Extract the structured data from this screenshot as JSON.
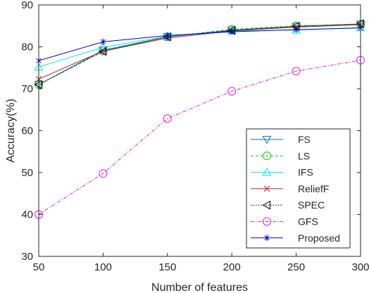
{
  "chart_data": {
    "type": "line",
    "xlabel": "Number of features",
    "ylabel": "Accuracy(%)",
    "xlim": [
      50,
      300
    ],
    "ylim": [
      30,
      90
    ],
    "x_ticks": [
      "50",
      "100",
      "150",
      "200",
      "250",
      "300"
    ],
    "y_ticks": [
      "30",
      "40",
      "50",
      "60",
      "70",
      "80",
      "90"
    ],
    "grid": false,
    "legend_position": "bottom-right",
    "x": [
      50,
      100,
      150,
      200,
      250,
      300
    ],
    "series": [
      {
        "name": "FS",
        "values": [
          71.0,
          79.2,
          82.4,
          84.0,
          84.9,
          85.4
        ],
        "color": "#0072BD",
        "dash": "solid",
        "marker": "triangle-down"
      },
      {
        "name": "LS",
        "values": [
          71.0,
          79.0,
          82.4,
          84.2,
          85.0,
          85.4
        ],
        "color": "#00CC00",
        "dash": "dashed",
        "marker": "circle"
      },
      {
        "name": "IFS",
        "values": [
          75.2,
          79.9,
          82.5,
          83.8,
          84.0,
          84.6
        ],
        "color": "#00E5E5",
        "dash": "solid",
        "marker": "triangle-up"
      },
      {
        "name": "ReliefF",
        "values": [
          72.3,
          79.0,
          82.1,
          83.8,
          84.7,
          85.3
        ],
        "color": "#B22222",
        "dash": "solid",
        "marker": "x"
      },
      {
        "name": "SPEC",
        "values": [
          71.0,
          78.9,
          82.4,
          83.9,
          84.9,
          85.5
        ],
        "color": "#000000",
        "dash": "dotted",
        "marker": "triangle-left"
      },
      {
        "name": "GFS",
        "values": [
          40.0,
          49.8,
          62.9,
          69.4,
          74.2,
          76.8
        ],
        "color": "#E01EE0",
        "dash": "dashdot",
        "marker": "circle"
      },
      {
        "name": "Proposed",
        "values": [
          76.7,
          81.2,
          82.7,
          83.6,
          84.1,
          84.5
        ],
        "color": "#0000CC",
        "dash": "solid",
        "marker": "star"
      }
    ]
  }
}
